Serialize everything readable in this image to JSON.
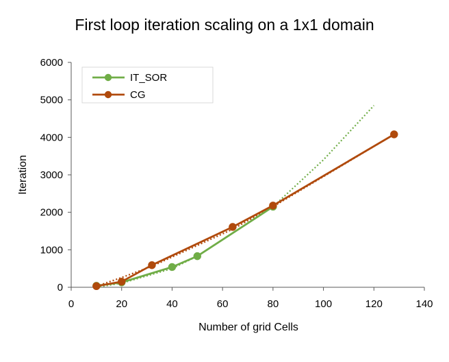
{
  "chart_data": {
    "type": "line",
    "title": "First loop iteration scaling on a 1x1 domain",
    "xlabel": "Number of grid Cells",
    "ylabel": "Iteration",
    "xlim": [
      0,
      140
    ],
    "ylim": [
      0,
      6000
    ],
    "xticks": [
      0,
      20,
      40,
      60,
      80,
      100,
      120,
      140
    ],
    "yticks": [
      0,
      1000,
      2000,
      3000,
      4000,
      5000,
      6000
    ],
    "grid": false,
    "legend_position": "top-left",
    "series": [
      {
        "name": "IT_SOR",
        "color": "#70ad47",
        "marker": "circle",
        "x": [
          10,
          20,
          40,
          50,
          80
        ],
        "y": [
          40,
          130,
          540,
          830,
          2150
        ],
        "trendline": {
          "type": "polynomial",
          "style": "dotted",
          "x": [
            10,
            20,
            40,
            50,
            80,
            100,
            120
          ],
          "y": [
            0,
            110,
            500,
            830,
            2150,
            3400,
            4850
          ]
        }
      },
      {
        "name": "CG",
        "color": "#b04a0c",
        "marker": "circle",
        "x": [
          10,
          20,
          32,
          64,
          80,
          128
        ],
        "y": [
          30,
          150,
          590,
          1610,
          2180,
          4080
        ],
        "trendline": {
          "type": "polynomial",
          "style": "dotted",
          "x": [
            10,
            20,
            32,
            64,
            80,
            128
          ],
          "y": [
            30,
            260,
            560,
            1550,
            2150,
            4080
          ]
        }
      }
    ]
  }
}
